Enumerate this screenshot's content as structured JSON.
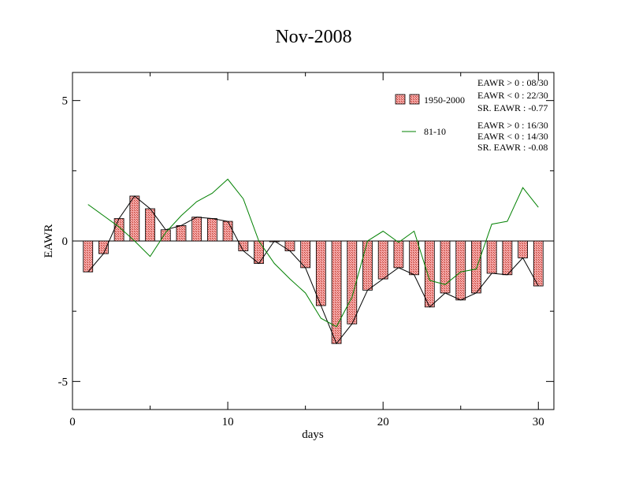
{
  "chart_data": {
    "type": "bar",
    "title": "Nov-2008",
    "xlabel": "days",
    "ylabel": "EAWR",
    "xlim": [
      0,
      31
    ],
    "ylim": [
      -6,
      6
    ],
    "x_ticks": [
      0,
      10,
      20,
      30
    ],
    "y_ticks": [
      5,
      0,
      -5
    ],
    "grid": false,
    "legend_position": "top-right",
    "x": [
      1,
      2,
      3,
      4,
      5,
      6,
      7,
      8,
      9,
      10,
      11,
      12,
      13,
      14,
      15,
      16,
      17,
      18,
      19,
      20,
      21,
      22,
      23,
      24,
      25,
      26,
      27,
      28,
      29,
      30
    ],
    "series": [
      {
        "name": "1950-2000",
        "kind": "bar",
        "color": "#f08080",
        "values": [
          -1.1,
          -0.45,
          0.8,
          1.6,
          1.15,
          0.4,
          0.55,
          0.85,
          0.8,
          0.7,
          -0.35,
          -0.8,
          0.0,
          -0.35,
          -0.95,
          -2.3,
          -3.65,
          -2.95,
          -1.75,
          -1.35,
          -0.95,
          -1.2,
          -2.35,
          -1.85,
          -2.1,
          -1.85,
          -1.15,
          -1.2,
          -0.6,
          -1.6
        ]
      },
      {
        "name": "81-10",
        "kind": "line",
        "color": "#008000",
        "values": [
          1.3,
          0.9,
          0.5,
          0.0,
          -0.55,
          0.3,
          0.9,
          1.4,
          1.7,
          2.2,
          1.5,
          0.0,
          -0.8,
          -1.35,
          -1.85,
          -2.75,
          -3.05,
          -2.0,
          0.0,
          0.35,
          -0.05,
          0.35,
          -1.4,
          -1.55,
          -1.1,
          -1.0,
          0.6,
          0.7,
          1.9,
          1.2
        ]
      }
    ],
    "stats": [
      [
        "EAWR > 0 : 08/30",
        "EAWR < 0 : 22/30",
        "SR. EAWR : -0.77"
      ],
      [
        "EAWR > 0 : 16/30",
        "EAWR < 0 : 14/30",
        "SR. EAWR : -0.08"
      ]
    ]
  }
}
